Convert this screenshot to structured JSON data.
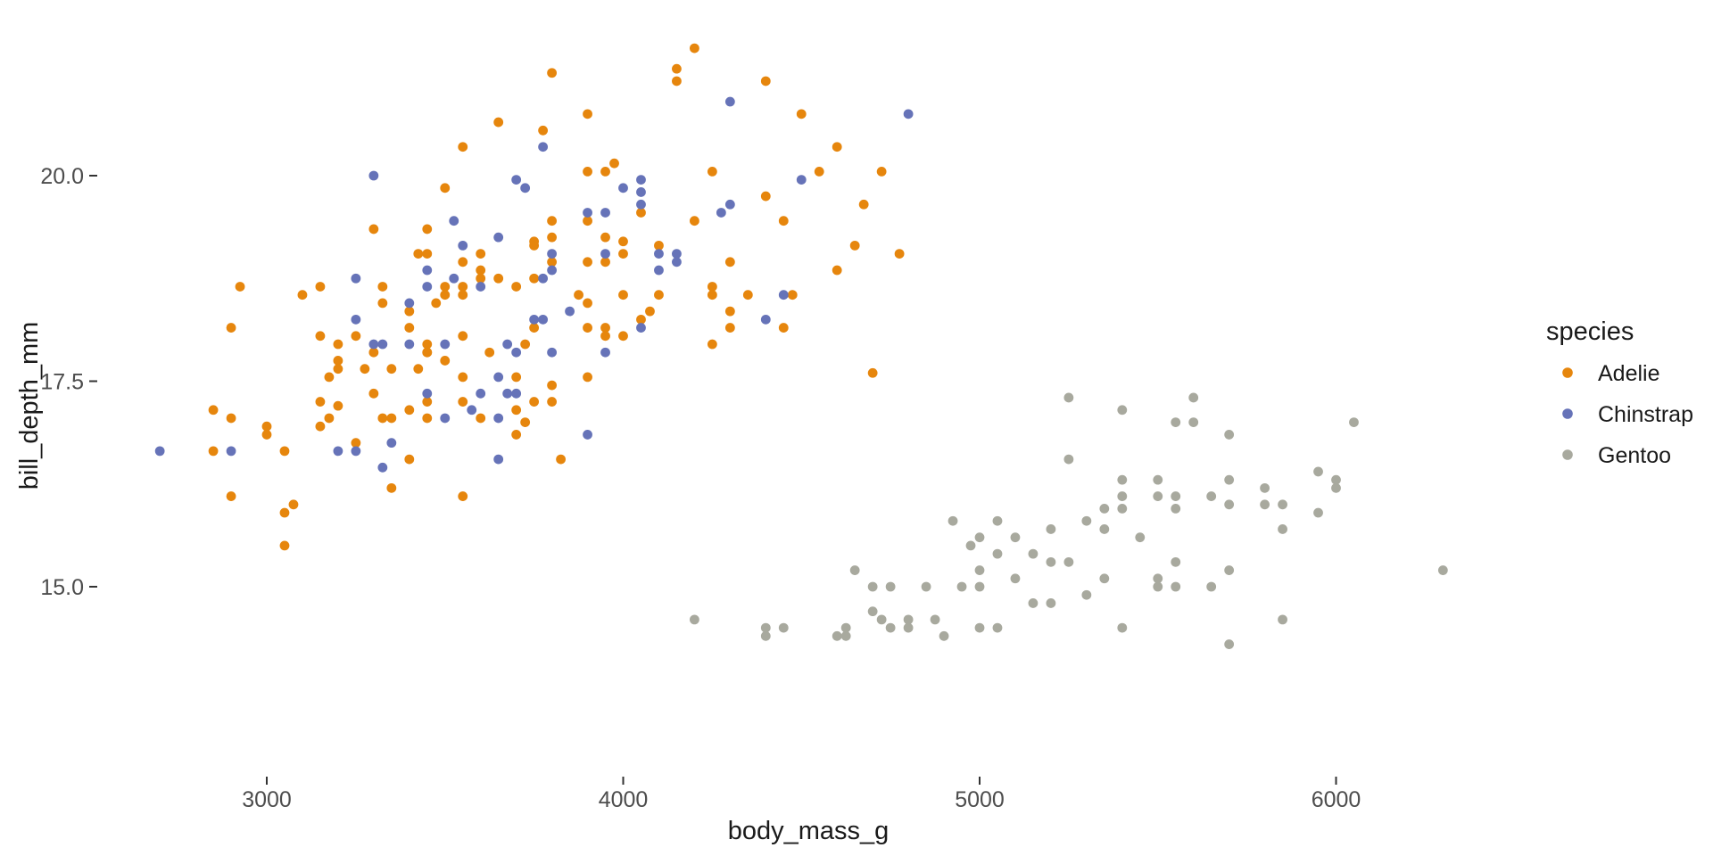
{
  "figure": {
    "background": "#ffffff",
    "x_axis": {
      "title": "body_mass_g",
      "ticks": [
        {
          "value": 3000,
          "label": "3000"
        },
        {
          "value": 4000,
          "label": "4000"
        },
        {
          "value": 5000,
          "label": "5000"
        },
        {
          "value": 6000,
          "label": "6000"
        }
      ]
    },
    "y_axis": {
      "title": "bill_depth_mm",
      "ticks": [
        {
          "value": 20.0,
          "label": "20.0"
        },
        {
          "value": 17.5,
          "label": "17.5"
        },
        {
          "value": 15.0,
          "label": "15.0"
        }
      ]
    },
    "legend": {
      "title": "species",
      "items": [
        {
          "label": "Adelie",
          "color": "#E6860D"
        },
        {
          "label": "Chinstrap",
          "color": "#6673B8"
        },
        {
          "label": "Gentoo",
          "color": "#A8A99E"
        }
      ]
    }
  },
  "scales": {
    "x": {
      "v0": 3000,
      "p0": 299,
      "v1": 4000,
      "p1": 698.5
    },
    "y": {
      "v0": 20.0,
      "p0": 197,
      "v1": 15.0,
      "p1": 658
    },
    "point_radius": 5.4
  },
  "chart_data": {
    "type": "scatter",
    "title": "",
    "xlabel": "body_mass_g",
    "ylabel": "bill_depth_mm",
    "xlim": [
      2530,
      6480
    ],
    "ylim": [
      13.9,
      21.9
    ],
    "grid": false,
    "legend_position": "right",
    "series": [
      {
        "name": "Adelie",
        "color": "#E6860D",
        "points": [
          [
            3300,
            19.35
          ],
          [
            3450,
            19.35
          ],
          [
            4200,
            21.55
          ],
          [
            3800,
            21.25
          ],
          [
            4150,
            21.3
          ],
          [
            4150,
            21.15
          ],
          [
            3650,
            20.65
          ],
          [
            3900,
            20.75
          ],
          [
            3775,
            20.55
          ],
          [
            3550,
            20.35
          ],
          [
            3975,
            20.15
          ],
          [
            3900,
            20.05
          ],
          [
            3950,
            20.05
          ],
          [
            3500,
            19.85
          ],
          [
            4250,
            20.05
          ],
          [
            4050,
            19.55
          ],
          [
            4200,
            19.45
          ],
          [
            3900,
            19.45
          ],
          [
            3800,
            19.45
          ],
          [
            3750,
            19.2
          ],
          [
            3800,
            19.25
          ],
          [
            3950,
            19.25
          ],
          [
            4000,
            19.2
          ],
          [
            4000,
            19.05
          ],
          [
            4100,
            19.15
          ],
          [
            3600,
            19.05
          ],
          [
            3550,
            18.95
          ],
          [
            3600,
            18.85
          ],
          [
            3600,
            18.75
          ],
          [
            3500,
            18.65
          ],
          [
            3500,
            18.55
          ],
          [
            3550,
            18.65
          ],
          [
            3550,
            18.55
          ],
          [
            3475,
            18.45
          ],
          [
            3650,
            18.75
          ],
          [
            3700,
            18.65
          ],
          [
            3750,
            19.15
          ],
          [
            3750,
            18.75
          ],
          [
            3800,
            18.95
          ],
          [
            3900,
            18.95
          ],
          [
            3950,
            18.95
          ],
          [
            4300,
            18.95
          ],
          [
            3875,
            18.55
          ],
          [
            3900,
            18.45
          ],
          [
            4000,
            18.55
          ],
          [
            4100,
            18.55
          ],
          [
            4075,
            18.35
          ],
          [
            4050,
            18.25
          ],
          [
            3900,
            18.15
          ],
          [
            3950,
            18.15
          ],
          [
            3950,
            18.05
          ],
          [
            4000,
            18.05
          ],
          [
            3750,
            18.15
          ],
          [
            4250,
            18.65
          ],
          [
            4250,
            18.55
          ],
          [
            4350,
            18.55
          ],
          [
            4300,
            18.35
          ],
          [
            4300,
            18.15
          ],
          [
            4250,
            17.95
          ],
          [
            3500,
            17.75
          ],
          [
            3550,
            18.05
          ],
          [
            3625,
            17.85
          ],
          [
            3725,
            17.95
          ],
          [
            3550,
            17.55
          ],
          [
            3700,
            17.55
          ],
          [
            3900,
            17.55
          ],
          [
            3800,
            17.45
          ],
          [
            3750,
            17.25
          ],
          [
            3800,
            17.25
          ],
          [
            3550,
            17.25
          ],
          [
            3600,
            17.05
          ],
          [
            3700,
            17.15
          ],
          [
            3725,
            17.0
          ],
          [
            3700,
            16.85
          ],
          [
            3825,
            16.55
          ],
          [
            3425,
            19.05
          ],
          [
            3450,
            19.05
          ],
          [
            2925,
            18.65
          ],
          [
            3100,
            18.55
          ],
          [
            3150,
            18.65
          ],
          [
            3325,
            18.65
          ],
          [
            3325,
            18.45
          ],
          [
            3400,
            18.35
          ],
          [
            2900,
            18.15
          ],
          [
            3300,
            17.85
          ],
          [
            3450,
            17.85
          ],
          [
            3150,
            18.05
          ],
          [
            3200,
            17.95
          ],
          [
            3250,
            18.05
          ],
          [
            3400,
            18.15
          ],
          [
            3450,
            17.95
          ],
          [
            3450,
            17.85
          ],
          [
            3200,
            17.75
          ],
          [
            3200,
            17.65
          ],
          [
            3175,
            17.55
          ],
          [
            3275,
            17.65
          ],
          [
            3350,
            17.65
          ],
          [
            3425,
            17.65
          ],
          [
            3300,
            17.35
          ],
          [
            3150,
            17.25
          ],
          [
            3200,
            17.2
          ],
          [
            3150,
            16.95
          ],
          [
            3175,
            17.05
          ],
          [
            3325,
            17.05
          ],
          [
            3350,
            17.05
          ],
          [
            3400,
            17.15
          ],
          [
            3450,
            17.25
          ],
          [
            2850,
            17.15
          ],
          [
            2900,
            17.05
          ],
          [
            3000,
            16.95
          ],
          [
            3000,
            16.85
          ],
          [
            3050,
            16.65
          ],
          [
            2850,
            16.65
          ],
          [
            3250,
            16.75
          ],
          [
            3400,
            16.55
          ],
          [
            3450,
            17.05
          ],
          [
            3350,
            16.2
          ],
          [
            3550,
            16.1
          ],
          [
            2900,
            16.1
          ],
          [
            3050,
            15.9
          ],
          [
            3075,
            16.0
          ],
          [
            3050,
            15.5
          ],
          [
            4400,
            21.15
          ],
          [
            4500,
            20.75
          ],
          [
            4600,
            20.35
          ],
          [
            4550,
            20.05
          ],
          [
            4725,
            20.05
          ],
          [
            4400,
            19.75
          ],
          [
            4675,
            19.65
          ],
          [
            4450,
            19.45
          ],
          [
            4650,
            19.15
          ],
          [
            4775,
            19.05
          ],
          [
            4600,
            18.85
          ],
          [
            4475,
            18.55
          ],
          [
            4450,
            18.15
          ],
          [
            4700,
            17.6
          ]
        ]
      },
      {
        "name": "Chinstrap",
        "color": "#6673B8",
        "points": [
          [
            3300,
            20.0
          ],
          [
            4300,
            20.9
          ],
          [
            3775,
            20.35
          ],
          [
            3700,
            19.95
          ],
          [
            3725,
            19.85
          ],
          [
            4000,
            19.85
          ],
          [
            4050,
            19.95
          ],
          [
            4050,
            19.8
          ],
          [
            4050,
            19.65
          ],
          [
            4300,
            19.65
          ],
          [
            4275,
            19.55
          ],
          [
            3900,
            19.55
          ],
          [
            3950,
            19.55
          ],
          [
            3525,
            19.45
          ],
          [
            3650,
            19.25
          ],
          [
            3550,
            19.15
          ],
          [
            3525,
            18.75
          ],
          [
            3600,
            18.65
          ],
          [
            3775,
            18.75
          ],
          [
            3800,
            19.05
          ],
          [
            3800,
            18.85
          ],
          [
            3950,
            19.05
          ],
          [
            4100,
            19.05
          ],
          [
            4100,
            18.85
          ],
          [
            4150,
            19.05
          ],
          [
            4150,
            18.95
          ],
          [
            3850,
            18.35
          ],
          [
            4050,
            18.15
          ],
          [
            3750,
            18.25
          ],
          [
            3775,
            18.25
          ],
          [
            3500,
            17.95
          ],
          [
            3675,
            17.95
          ],
          [
            3700,
            17.85
          ],
          [
            3800,
            17.85
          ],
          [
            3950,
            17.85
          ],
          [
            3650,
            17.55
          ],
          [
            3600,
            17.35
          ],
          [
            3675,
            17.35
          ],
          [
            3700,
            17.35
          ],
          [
            3575,
            17.15
          ],
          [
            3650,
            17.05
          ],
          [
            3500,
            17.05
          ],
          [
            3900,
            16.85
          ],
          [
            3650,
            16.55
          ],
          [
            3250,
            18.75
          ],
          [
            3450,
            18.85
          ],
          [
            3400,
            18.45
          ],
          [
            3450,
            18.65
          ],
          [
            3250,
            18.25
          ],
          [
            3300,
            17.95
          ],
          [
            3325,
            17.95
          ],
          [
            3400,
            17.95
          ],
          [
            3450,
            17.35
          ],
          [
            2700,
            16.65
          ],
          [
            2900,
            16.65
          ],
          [
            3200,
            16.65
          ],
          [
            3250,
            16.65
          ],
          [
            3350,
            16.75
          ],
          [
            3325,
            16.45
          ],
          [
            4500,
            19.95
          ],
          [
            4800,
            20.75
          ],
          [
            4450,
            18.55
          ],
          [
            4400,
            18.25
          ]
        ]
      },
      {
        "name": "Gentoo",
        "color": "#A8A99E",
        "points": [
          [
            4650,
            15.2
          ],
          [
            4700,
            15.0
          ],
          [
            4750,
            15.0
          ],
          [
            4850,
            15.0
          ],
          [
            4700,
            14.7
          ],
          [
            4725,
            14.6
          ],
          [
            4750,
            14.5
          ],
          [
            4800,
            14.6
          ],
          [
            4800,
            14.5
          ],
          [
            4200,
            14.6
          ],
          [
            4400,
            14.5
          ],
          [
            4400,
            14.4
          ],
          [
            4450,
            14.5
          ],
          [
            4600,
            14.4
          ],
          [
            4625,
            14.5
          ],
          [
            4625,
            14.4
          ],
          [
            5250,
            17.3
          ],
          [
            5600,
            17.3
          ],
          [
            5400,
            17.15
          ],
          [
            5550,
            17.0
          ],
          [
            5600,
            17.0
          ],
          [
            5700,
            16.85
          ],
          [
            5250,
            16.55
          ],
          [
            5400,
            16.3
          ],
          [
            5400,
            16.1
          ],
          [
            5400,
            15.95
          ],
          [
            5500,
            16.3
          ],
          [
            5500,
            16.1
          ],
          [
            5550,
            16.1
          ],
          [
            5550,
            15.95
          ],
          [
            5650,
            16.1
          ],
          [
            5700,
            16.3
          ],
          [
            5700,
            16.0
          ],
          [
            5800,
            16.2
          ],
          [
            5800,
            16.0
          ],
          [
            5850,
            16.0
          ],
          [
            5350,
            15.95
          ],
          [
            5300,
            15.8
          ],
          [
            5350,
            15.7
          ],
          [
            4925,
            15.8
          ],
          [
            5050,
            15.8
          ],
          [
            5000,
            15.6
          ],
          [
            4975,
            15.5
          ],
          [
            5100,
            15.6
          ],
          [
            5050,
            15.4
          ],
          [
            5150,
            15.4
          ],
          [
            5200,
            15.7
          ],
          [
            5200,
            15.3
          ],
          [
            5250,
            15.3
          ],
          [
            5450,
            15.6
          ],
          [
            5000,
            15.2
          ],
          [
            5100,
            15.1
          ],
          [
            4950,
            15.0
          ],
          [
            5000,
            15.0
          ],
          [
            5350,
            15.1
          ],
          [
            5500,
            15.1
          ],
          [
            5500,
            15.0
          ],
          [
            5550,
            15.3
          ],
          [
            5550,
            15.0
          ],
          [
            5650,
            15.0
          ],
          [
            5700,
            15.2
          ],
          [
            5300,
            14.9
          ],
          [
            5150,
            14.8
          ],
          [
            5200,
            14.8
          ],
          [
            4875,
            14.6
          ],
          [
            4900,
            14.4
          ],
          [
            5000,
            14.5
          ],
          [
            5050,
            14.5
          ],
          [
            5400,
            14.5
          ],
          [
            5700,
            14.3
          ],
          [
            6050,
            17.0
          ],
          [
            5950,
            16.4
          ],
          [
            6000,
            16.3
          ],
          [
            6000,
            16.2
          ],
          [
            5950,
            15.9
          ],
          [
            5850,
            15.7
          ],
          [
            6300,
            15.2
          ],
          [
            5850,
            14.6
          ]
        ]
      }
    ]
  }
}
